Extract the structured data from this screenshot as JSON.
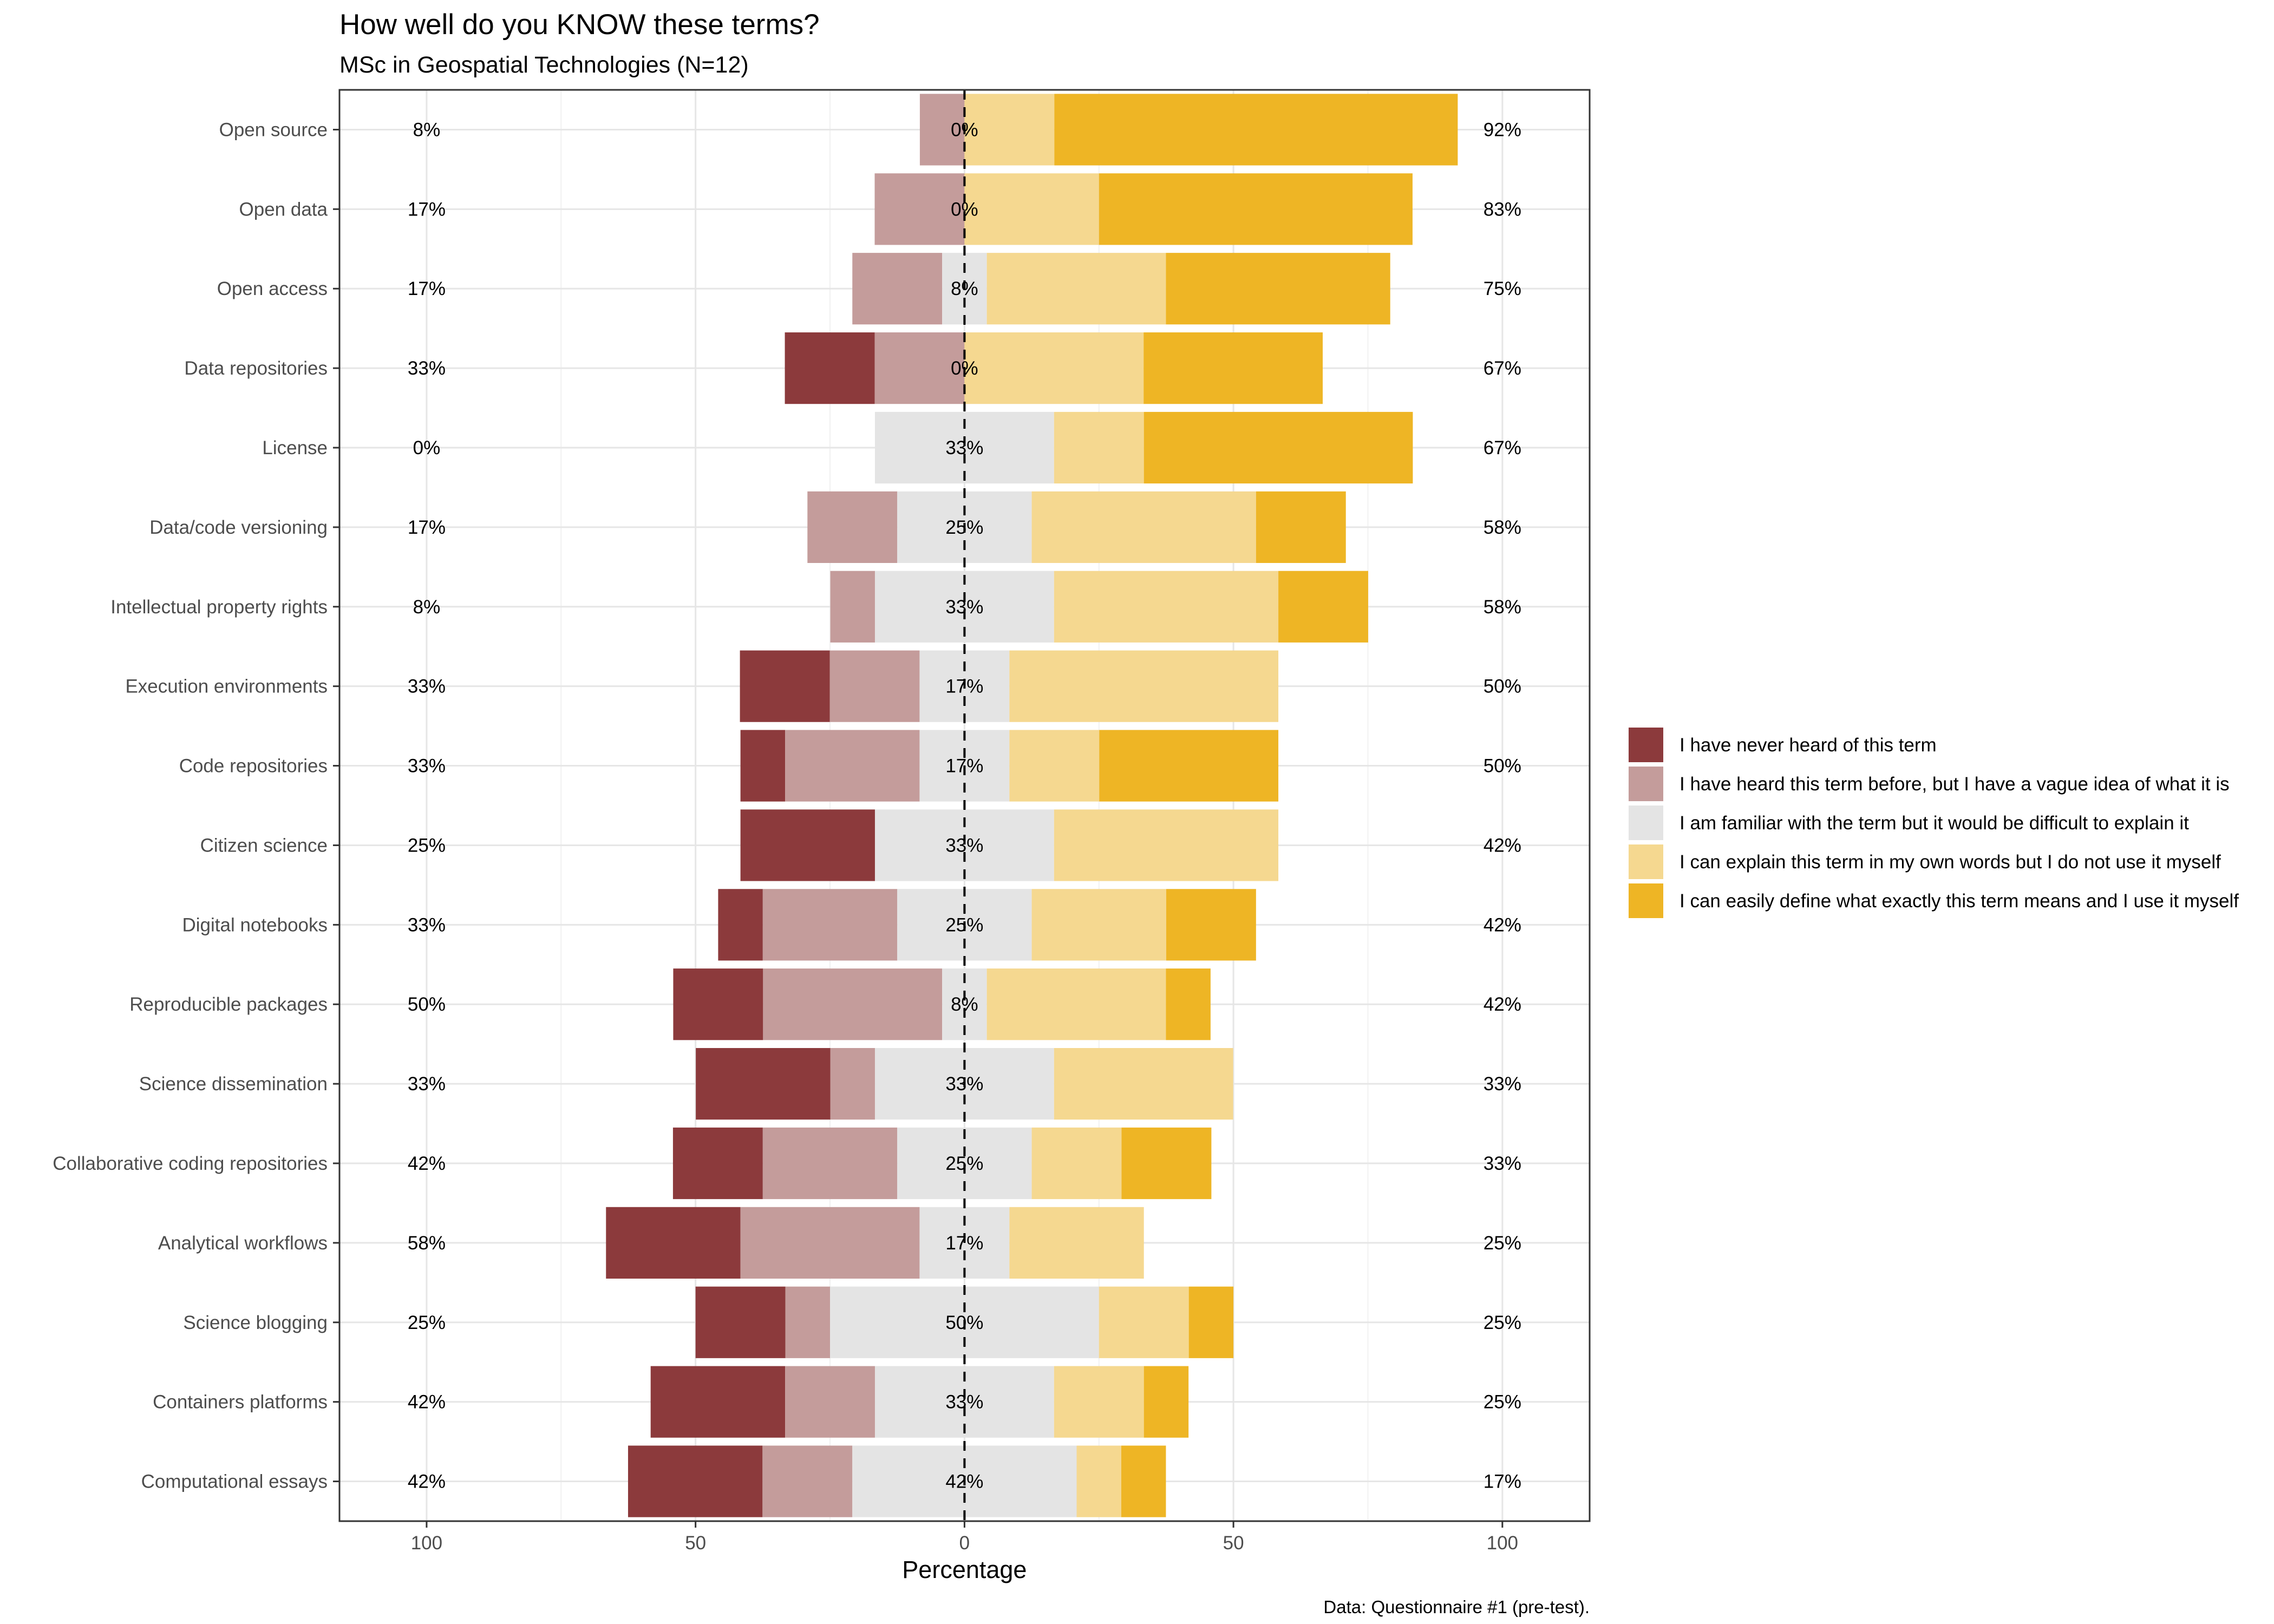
{
  "chart_data": {
    "type": "bar",
    "orientation": "horizontal",
    "stacked": "diverging",
    "title": "How well do you KNOW these terms?",
    "subtitle": "MSc in Geospatial Technologies (N=12)",
    "xlabel": "Percentage",
    "xlim": [
      -100,
      100
    ],
    "x_ticks": [
      -100,
      -50,
      0,
      50,
      100
    ],
    "x_tick_labels": [
      "100",
      "50",
      "0",
      "50",
      "100"
    ],
    "caption": "Data: Questionnaire #1 (pre-test).",
    "legend_position": "right",
    "grid": true,
    "series": [
      {
        "name": "I have never heard of this term",
        "color": "#8c3a3c"
      },
      {
        "name": "I have heard this term before, but I have a vague idea of what it is",
        "color": "#c49c9b"
      },
      {
        "name": "I am familiar with the term but it would be difficult to explain it",
        "color": "#e4e4e4"
      },
      {
        "name": "I can explain this term in my own words but I do not use it myself",
        "color": "#f5d890"
      },
      {
        "name": "I can easily define what exactly this term means and I use it myself",
        "color": "#eeb525"
      }
    ],
    "categories": [
      "Open source",
      "Open data",
      "Open access",
      "Data repositories",
      "License",
      "Data/code versioning",
      "Intellectual property rights",
      "Execution environments",
      "Code repositories",
      "Citizen science",
      "Digital notebooks",
      "Reproducible packages",
      "Science dissemination",
      "Collaborative coding repositories",
      "Analytical workflows",
      "Science blogging",
      "Containers platforms",
      "Computational essays"
    ],
    "values": [
      [
        0,
        8.3,
        0,
        16.7,
        75
      ],
      [
        0,
        16.7,
        0,
        25,
        58.3
      ],
      [
        0,
        16.7,
        8.3,
        33.3,
        41.7
      ],
      [
        16.7,
        16.7,
        0,
        33.3,
        33.3
      ],
      [
        0,
        0,
        33.3,
        16.7,
        50
      ],
      [
        0,
        16.7,
        25,
        41.7,
        16.7
      ],
      [
        0,
        8.3,
        33.3,
        41.7,
        16.7
      ],
      [
        16.7,
        16.7,
        16.7,
        50,
        0
      ],
      [
        8.3,
        25,
        16.7,
        16.7,
        33.3
      ],
      [
        25,
        0,
        33.3,
        41.7,
        0
      ],
      [
        8.3,
        25,
        25,
        25,
        16.7
      ],
      [
        16.7,
        33.3,
        8.3,
        33.3,
        8.3
      ],
      [
        25,
        8.3,
        33.3,
        33.3,
        0
      ],
      [
        16.7,
        25,
        25,
        16.7,
        16.7
      ],
      [
        25,
        33.3,
        16.7,
        25,
        0
      ],
      [
        16.7,
        8.3,
        50,
        16.7,
        8.3
      ],
      [
        25,
        16.7,
        33.3,
        16.7,
        8.3
      ],
      [
        25,
        16.7,
        41.7,
        8.3,
        8.3
      ]
    ],
    "left_labels": [
      "8%",
      "17%",
      "17%",
      "33%",
      "0%",
      "17%",
      "8%",
      "33%",
      "33%",
      "25%",
      "33%",
      "50%",
      "33%",
      "42%",
      "58%",
      "25%",
      "42%",
      "42%"
    ],
    "center_labels": [
      "0%",
      "0%",
      "8%",
      "0%",
      "33%",
      "25%",
      "33%",
      "17%",
      "17%",
      "33%",
      "25%",
      "8%",
      "33%",
      "25%",
      "17%",
      "50%",
      "33%",
      "42%"
    ],
    "right_labels": [
      "92%",
      "83%",
      "75%",
      "67%",
      "67%",
      "58%",
      "58%",
      "50%",
      "50%",
      "42%",
      "42%",
      "42%",
      "33%",
      "33%",
      "25%",
      "25%",
      "25%",
      "17%"
    ]
  }
}
